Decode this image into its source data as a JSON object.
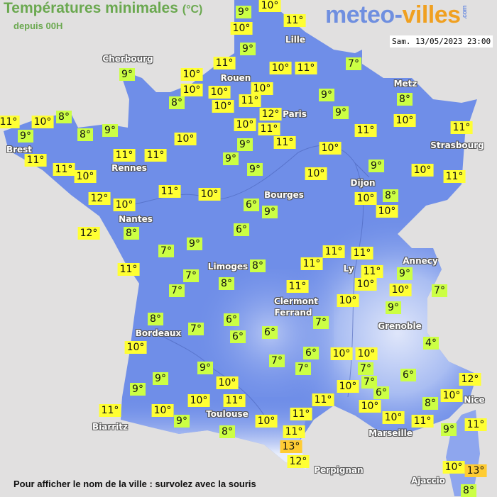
{
  "header": {
    "title": "Températures minimales",
    "unit": "(°C)",
    "subtitle": "depuis 00H"
  },
  "logo": {
    "part1": "meteo-",
    "part2": "villes",
    "suffix": ".com"
  },
  "datetime": "Sam. 13/05/2023 23:00",
  "footer": "Pour afficher le nom de la ville : survolez avec la souris",
  "colors": {
    "land": "#6f8ee8",
    "sea": "#e1e0e0",
    "label_mild": "#ffff33",
    "label_cool": "#ccff44",
    "label_warm": "#ffcc33"
  },
  "cities": [
    "Cherbourg",
    "Rouen",
    "Lille",
    "Paris",
    "Metz",
    "Strasbourg",
    "Brest",
    "Rennes",
    "Nantes",
    "Bourges",
    "Dijon",
    "Limoges",
    "Annecy",
    "Ly",
    "Clermont",
    "Ferrand",
    "Grenoble",
    "Bordeaux",
    "Toulouse",
    "Nice",
    "Biarritz",
    "Marseille",
    "Perpignan",
    "Ajaccio"
  ],
  "temperatures": [
    9,
    10,
    10,
    11,
    9,
    11,
    10,
    11,
    7,
    10,
    10,
    10,
    10,
    8,
    10,
    11,
    9,
    8,
    12,
    9,
    10,
    9,
    8,
    11,
    10,
    9,
    8,
    9,
    10,
    11,
    11,
    11,
    11,
    10,
    11,
    11,
    11,
    9,
    9,
    10,
    11,
    10,
    9,
    10,
    9,
    10,
    11,
    12,
    10,
    11,
    10,
    6,
    9,
    10,
    8,
    10,
    12,
    8,
    6,
    7,
    9,
    11,
    11,
    11,
    7,
    8,
    8,
    11,
    11,
    9,
    10,
    10,
    7,
    7,
    11,
    10,
    9,
    8,
    6,
    7,
    6,
    6,
    7,
    10,
    4,
    9,
    7,
    6,
    7,
    10,
    10,
    7,
    6,
    9,
    10,
    9,
    7,
    10,
    12,
    10,
    6,
    11,
    10,
    11,
    11,
    10,
    9,
    8,
    10,
    11,
    11,
    13,
    12,
    10,
    10,
    8,
    11,
    9,
    11,
    10,
    13,
    8
  ]
}
